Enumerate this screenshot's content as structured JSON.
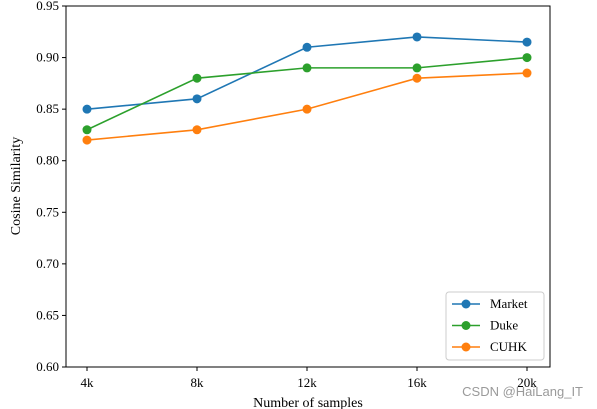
{
  "chart_data": {
    "type": "line",
    "categories": [
      "4k",
      "8k",
      "12k",
      "16k",
      "20k"
    ],
    "xlabel": "Number of samples",
    "ylabel": "Cosine Similarity",
    "ylim": [
      0.6,
      0.95
    ],
    "yticks": [
      "0.60",
      "0.65",
      "0.70",
      "0.75",
      "0.80",
      "0.85",
      "0.90",
      "0.95"
    ],
    "grid": false,
    "legend_position": "bottom-right",
    "series": [
      {
        "name": "Market",
        "color": "#1f77b4",
        "values": [
          0.85,
          0.86,
          0.91,
          0.92,
          0.915
        ]
      },
      {
        "name": "Duke",
        "color": "#2ca02c",
        "values": [
          0.83,
          0.88,
          0.89,
          0.89,
          0.9
        ]
      },
      {
        "name": "CUHK",
        "color": "#ff7f0e",
        "values": [
          0.82,
          0.83,
          0.85,
          0.88,
          0.885
        ]
      }
    ]
  },
  "watermark": "CSDN @HaiLang_IT"
}
